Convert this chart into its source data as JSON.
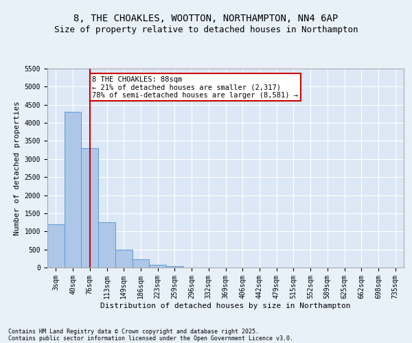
{
  "title": "8, THE CHOAKLES, WOOTTON, NORTHAMPTON, NN4 6AP",
  "subtitle": "Size of property relative to detached houses in Northampton",
  "xlabel": "Distribution of detached houses by size in Northampton",
  "ylabel": "Number of detached properties",
  "footer_line1": "Contains HM Land Registry data © Crown copyright and database right 2025.",
  "footer_line2": "Contains public sector information licensed under the Open Government Licence v3.0.",
  "categories": [
    "3sqm",
    "40sqm",
    "76sqm",
    "113sqm",
    "149sqm",
    "186sqm",
    "223sqm",
    "259sqm",
    "296sqm",
    "332sqm",
    "369sqm",
    "406sqm",
    "442sqm",
    "479sqm",
    "515sqm",
    "552sqm",
    "589sqm",
    "625sqm",
    "662sqm",
    "698sqm",
    "735sqm"
  ],
  "values": [
    1200,
    4300,
    3300,
    1250,
    500,
    220,
    80,
    30,
    5,
    3,
    2,
    1,
    1,
    0,
    0,
    0,
    0,
    0,
    0,
    0,
    0
  ],
  "bar_color": "#aec6e8",
  "bar_edge_color": "#5b9bd5",
  "vline_x": 2,
  "vline_color": "#cc0000",
  "annotation_text": "8 THE CHOAKLES: 88sqm\n← 21% of detached houses are smaller (2,317)\n78% of semi-detached houses are larger (8,581) →",
  "annotation_box_color": "#ffffff",
  "annotation_box_edge": "#cc0000",
  "ylim": [
    0,
    5500
  ],
  "yticks": [
    0,
    500,
    1000,
    1500,
    2000,
    2500,
    3000,
    3500,
    4000,
    4500,
    5000,
    5500
  ],
  "bg_color": "#e8f0f8",
  "plot_bg_color": "#dce8f5",
  "grid_color": "#ffffff",
  "title_fontsize": 10,
  "subtitle_fontsize": 9,
  "tick_fontsize": 7,
  "ylabel_fontsize": 8,
  "xlabel_fontsize": 8,
  "footer_fontsize": 6,
  "annotation_fontsize": 7.5
}
